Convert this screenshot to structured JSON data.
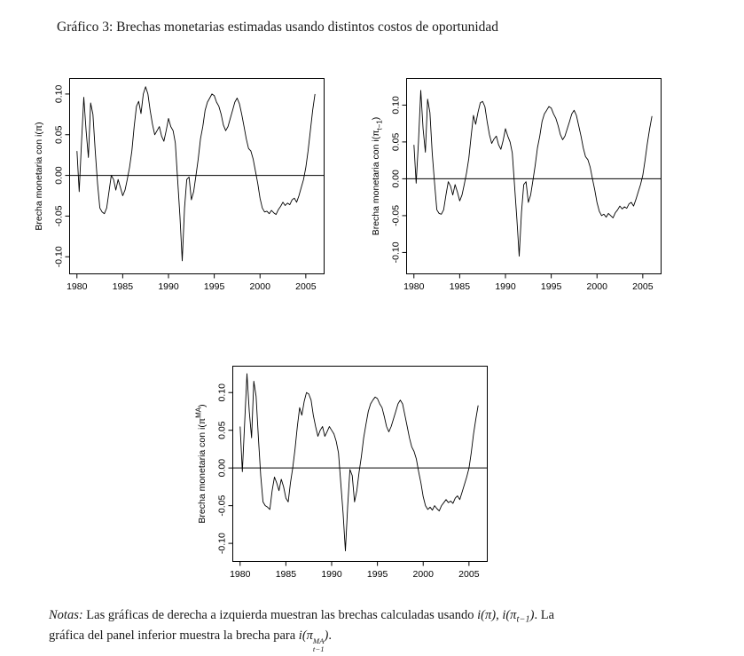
{
  "page": {
    "title": "Gráfico 3: Brechas monetarias estimadas usando distintos costos de oportunidad"
  },
  "notes": {
    "label": "Notas:",
    "line1_a": " Las gráficas de derecha a izquierda muestran las brechas calculadas usando ",
    "math_pi": "i(π)",
    "comma": ", ",
    "math_pit_pre": "i(π",
    "math_pit_sub": "t−1",
    "math_pit_post": ")",
    "line1_b": ". La",
    "line2_a": "gráfica del panel inferior muestra la brecha para ",
    "math_pima_pre": "i(π",
    "math_pima_sup": "MA",
    "math_pima_sub": "t−1",
    "math_pima_post": ")",
    "line2_b": "."
  },
  "chart_data": [
    {
      "id": "brecha-i-pi",
      "type": "line",
      "title": "",
      "xlabel": "",
      "ylabel_plain": "Brecha monetaria con i(π)",
      "ylabel": {
        "pre": "Brecha monetaria con  i(π",
        "sup": "",
        "sub": "",
        "post": ")"
      },
      "legend": "none",
      "grid": false,
      "line_color": "#000000",
      "xlim": [
        1979.2,
        2007.0
      ],
      "ylim": [
        -0.121,
        0.119
      ],
      "xticks": [
        1980,
        1985,
        1990,
        1995,
        2000,
        2005
      ],
      "xtick_labels": [
        "1980",
        "1985",
        "1990",
        "1995",
        "2000",
        "2005"
      ],
      "yticks": [
        0.1,
        0.05,
        0.0,
        -0.05,
        -0.1
      ],
      "ytick_labels": [
        "0.10",
        "0.05",
        "0.00",
        "-0.05",
        "-0.10"
      ],
      "x_start": 1980.0,
      "x_step": 0.25,
      "values": [
        0.03,
        -0.02,
        0.04,
        0.096,
        0.055,
        0.022,
        0.089,
        0.075,
        0.03,
        -0.01,
        -0.04,
        -0.045,
        -0.047,
        -0.04,
        -0.02,
        0.0,
        -0.005,
        -0.018,
        -0.005,
        -0.015,
        -0.025,
        -0.018,
        -0.005,
        0.01,
        0.03,
        0.06,
        0.085,
        0.091,
        0.076,
        0.1,
        0.109,
        0.1,
        0.08,
        0.063,
        0.05,
        0.055,
        0.06,
        0.048,
        0.042,
        0.055,
        0.07,
        0.06,
        0.055,
        0.04,
        -0.005,
        -0.05,
        -0.105,
        -0.04,
        -0.005,
        -0.002,
        -0.03,
        -0.02,
        0.0,
        0.02,
        0.045,
        0.06,
        0.08,
        0.09,
        0.095,
        0.1,
        0.098,
        0.09,
        0.085,
        0.075,
        0.062,
        0.055,
        0.06,
        0.07,
        0.08,
        0.09,
        0.095,
        0.088,
        0.075,
        0.06,
        0.045,
        0.033,
        0.03,
        0.02,
        0.005,
        -0.01,
        -0.028,
        -0.04,
        -0.045,
        -0.044,
        -0.047,
        -0.043,
        -0.046,
        -0.048,
        -0.042,
        -0.038,
        -0.033,
        -0.037,
        -0.034,
        -0.036,
        -0.03,
        -0.028,
        -0.033,
        -0.025,
        -0.015,
        -0.005,
        0.01,
        0.03,
        0.055,
        0.08,
        0.1
      ]
    },
    {
      "id": "brecha-i-pi-t-1",
      "type": "line",
      "title": "",
      "xlabel": "",
      "ylabel_plain": "Brecha monetaria con i(πt−1)",
      "ylabel": {
        "pre": "Brecha monetaria con  i(π",
        "sup": "",
        "sub": "t−1",
        "post": ")"
      },
      "legend": "none",
      "grid": false,
      "line_color": "#000000",
      "xlim": [
        1979.2,
        2007.0
      ],
      "ylim": [
        -0.129,
        0.136
      ],
      "xticks": [
        1980,
        1985,
        1990,
        1995,
        2000,
        2005
      ],
      "xtick_labels": [
        "1980",
        "1985",
        "1990",
        "1995",
        "2000",
        "2005"
      ],
      "yticks": [
        0.1,
        0.05,
        0.0,
        -0.05,
        -0.1
      ],
      "ytick_labels": [
        "0.10",
        "0.05",
        "0.00",
        "-0.05",
        "-0.10"
      ],
      "x_start": 1980.0,
      "x_step": 0.25,
      "values": [
        0.046,
        -0.006,
        0.05,
        0.12,
        0.068,
        0.036,
        0.108,
        0.09,
        0.035,
        -0.005,
        -0.042,
        -0.047,
        -0.048,
        -0.042,
        -0.022,
        -0.004,
        -0.01,
        -0.022,
        -0.008,
        -0.018,
        -0.03,
        -0.022,
        -0.008,
        0.008,
        0.028,
        0.058,
        0.086,
        0.074,
        0.09,
        0.103,
        0.105,
        0.098,
        0.078,
        0.06,
        0.048,
        0.054,
        0.058,
        0.046,
        0.04,
        0.052,
        0.068,
        0.058,
        0.05,
        0.035,
        -0.01,
        -0.055,
        -0.105,
        -0.045,
        -0.008,
        -0.004,
        -0.032,
        -0.022,
        -0.002,
        0.018,
        0.042,
        0.058,
        0.078,
        0.088,
        0.093,
        0.098,
        0.096,
        0.088,
        0.082,
        0.072,
        0.06,
        0.053,
        0.058,
        0.068,
        0.078,
        0.088,
        0.093,
        0.086,
        0.072,
        0.058,
        0.042,
        0.03,
        0.026,
        0.016,
        0.0,
        -0.015,
        -0.032,
        -0.044,
        -0.05,
        -0.048,
        -0.052,
        -0.047,
        -0.05,
        -0.053,
        -0.046,
        -0.042,
        -0.037,
        -0.041,
        -0.038,
        -0.04,
        -0.034,
        -0.032,
        -0.037,
        -0.028,
        -0.018,
        -0.008,
        0.005,
        0.025,
        0.048,
        0.068,
        0.085
      ]
    },
    {
      "id": "brecha-i-pi-ma",
      "type": "line",
      "title": "",
      "xlabel": "",
      "ylabel_plain": "Brecha monetaria con i(πMA)",
      "ylabel": {
        "pre": "Brecha monetaria con  i(π",
        "sup": "MA",
        "sub": "",
        "post": ")"
      },
      "legend": "none",
      "grid": false,
      "line_color": "#000000",
      "xlim": [
        1979.2,
        2007.0
      ],
      "ylim": [
        -0.124,
        0.135
      ],
      "xticks": [
        1980,
        1985,
        1990,
        1995,
        2000,
        2005
      ],
      "xtick_labels": [
        "1980",
        "1985",
        "1990",
        "1995",
        "2000",
        "2005"
      ],
      "yticks": [
        0.1,
        0.05,
        0.0,
        -0.05,
        -0.1
      ],
      "ytick_labels": [
        "0.10",
        "0.05",
        "0.00",
        "-0.05",
        "-0.10"
      ],
      "x_start": 1980.0,
      "x_step": 0.25,
      "values": [
        0.055,
        -0.005,
        0.06,
        0.125,
        0.075,
        0.04,
        0.115,
        0.095,
        0.04,
        -0.01,
        -0.045,
        -0.05,
        -0.052,
        -0.055,
        -0.03,
        -0.012,
        -0.02,
        -0.03,
        -0.015,
        -0.025,
        -0.04,
        -0.045,
        -0.02,
        0.0,
        0.025,
        0.055,
        0.08,
        0.07,
        0.088,
        0.1,
        0.098,
        0.09,
        0.07,
        0.055,
        0.042,
        0.05,
        0.055,
        0.042,
        0.048,
        0.055,
        0.05,
        0.045,
        0.035,
        0.02,
        -0.02,
        -0.06,
        -0.11,
        -0.05,
        -0.002,
        -0.01,
        -0.045,
        -0.03,
        -0.005,
        0.015,
        0.04,
        0.058,
        0.075,
        0.085,
        0.09,
        0.094,
        0.092,
        0.085,
        0.08,
        0.068,
        0.055,
        0.048,
        0.055,
        0.065,
        0.075,
        0.085,
        0.09,
        0.085,
        0.07,
        0.055,
        0.04,
        0.028,
        0.022,
        0.012,
        -0.005,
        -0.02,
        -0.038,
        -0.05,
        -0.055,
        -0.052,
        -0.056,
        -0.05,
        -0.054,
        -0.057,
        -0.05,
        -0.046,
        -0.042,
        -0.046,
        -0.044,
        -0.047,
        -0.04,
        -0.037,
        -0.042,
        -0.032,
        -0.022,
        -0.012,
        0.0,
        0.02,
        0.045,
        0.065,
        0.083
      ]
    }
  ]
}
